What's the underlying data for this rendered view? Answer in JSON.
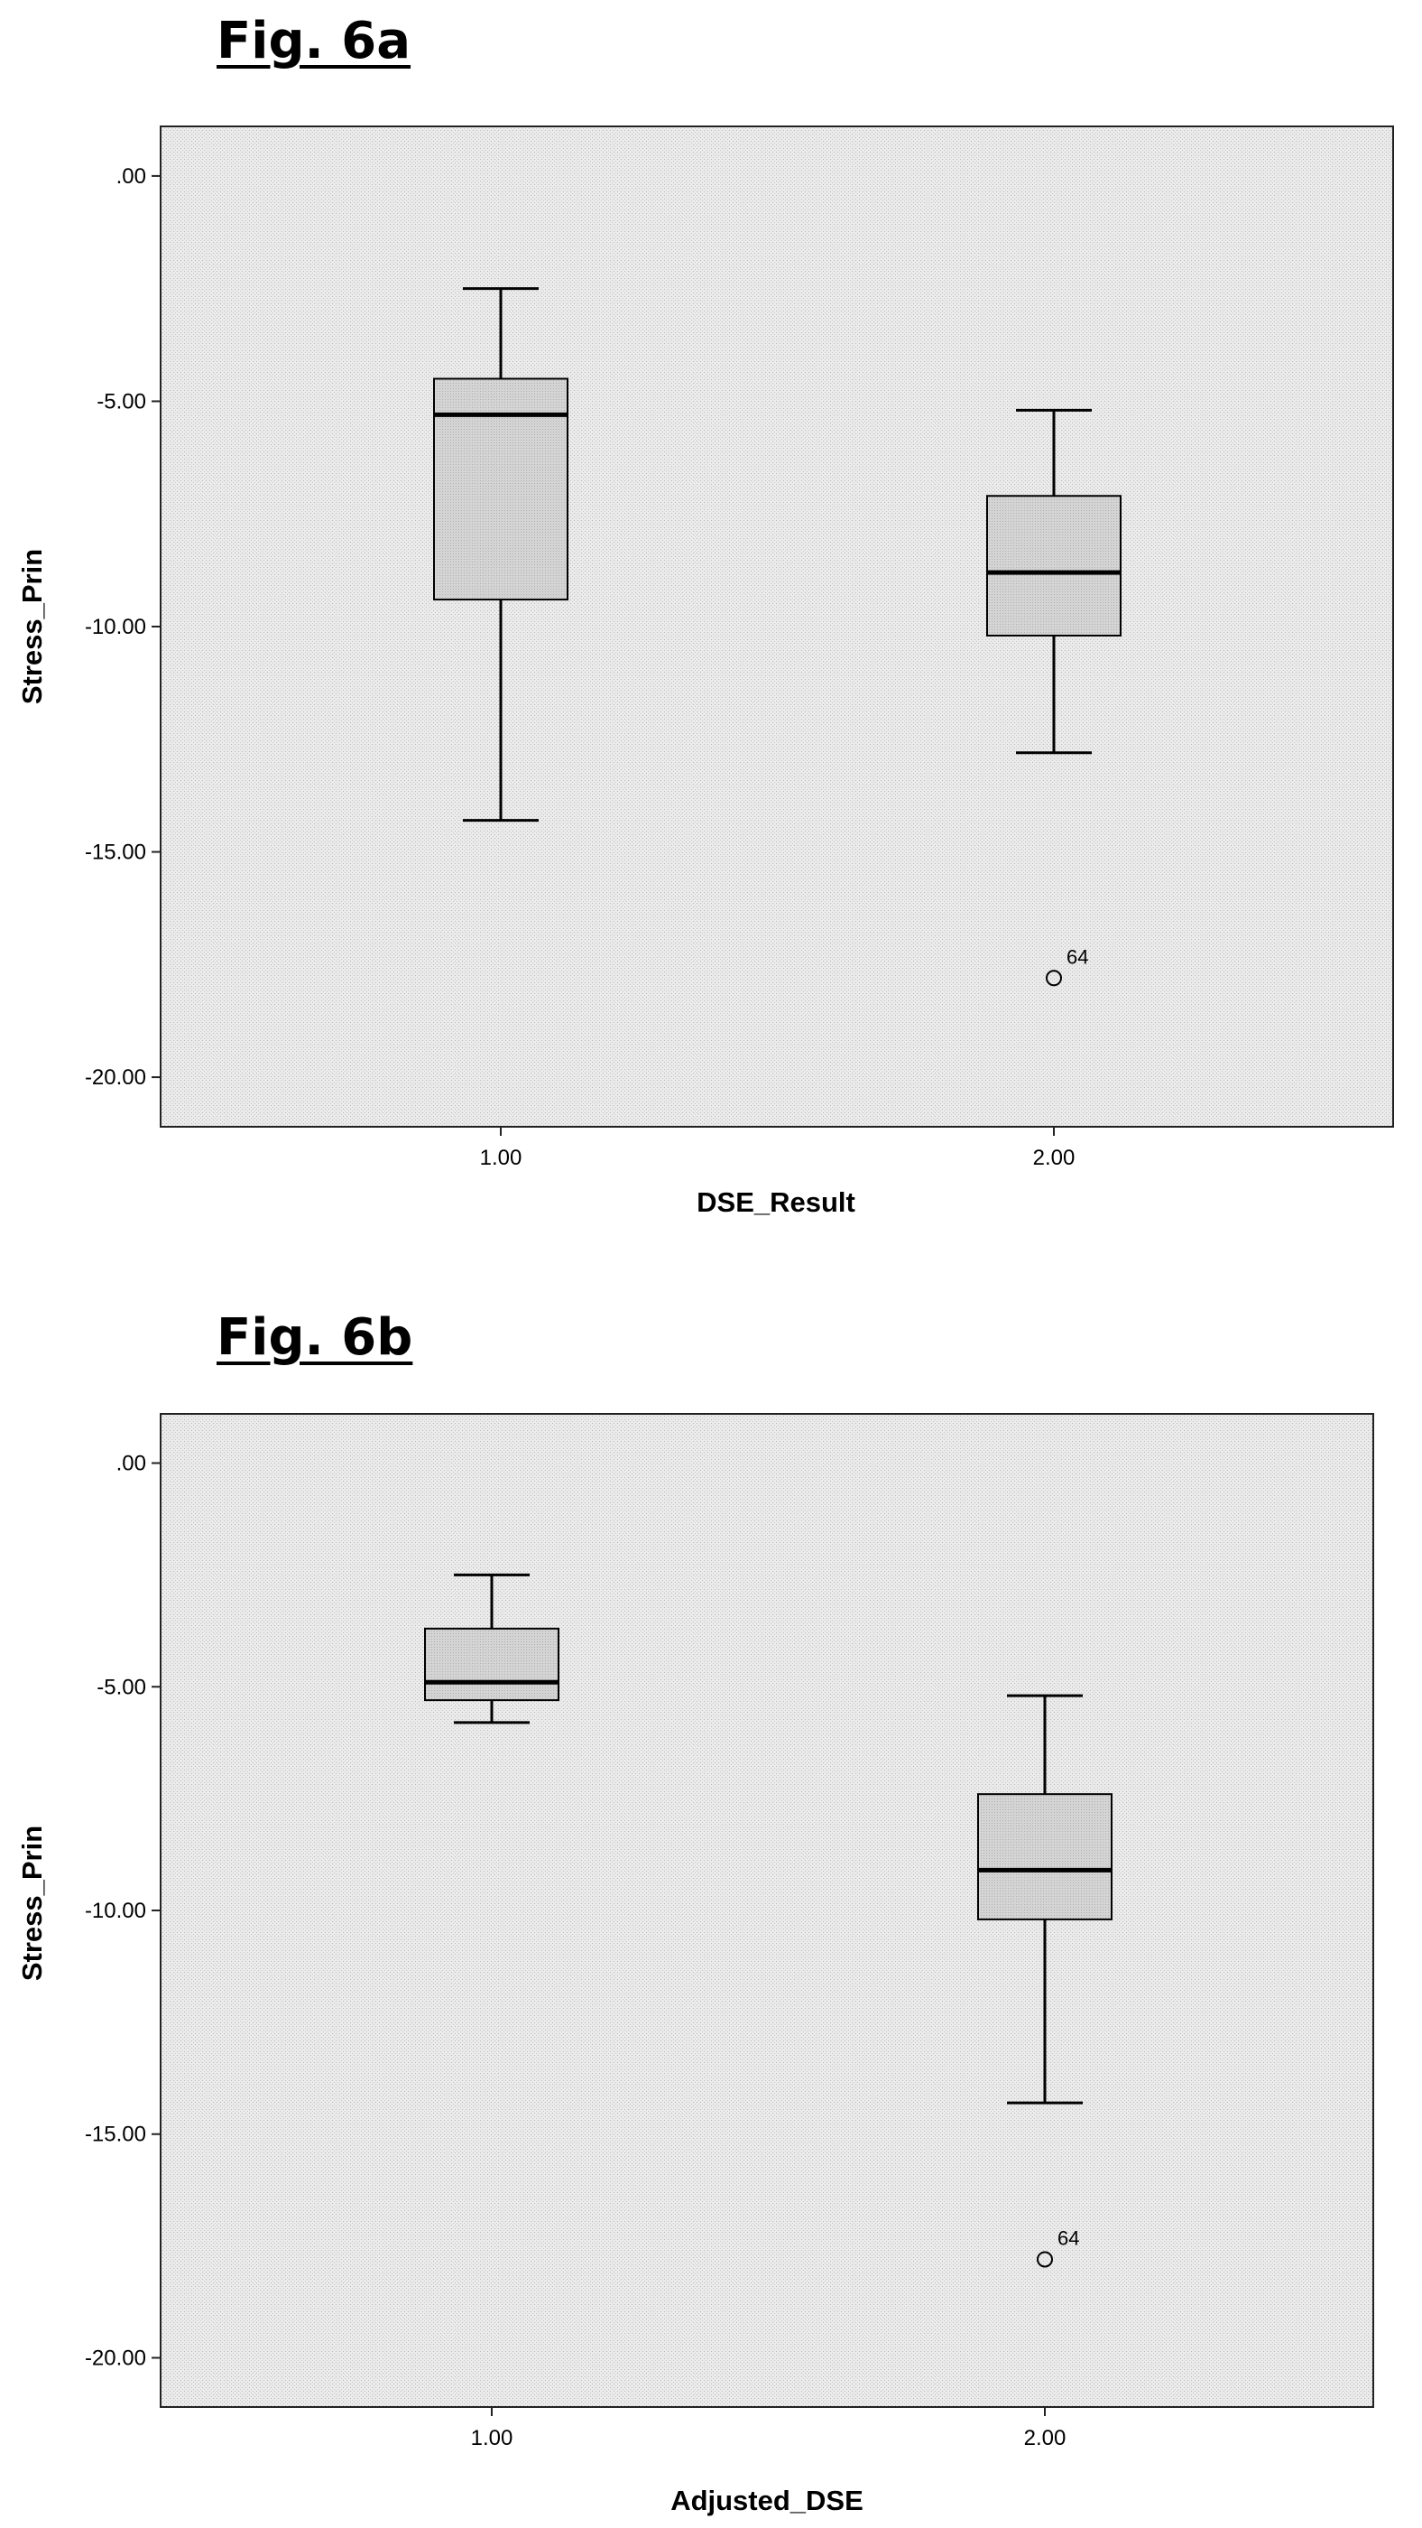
{
  "figures": [
    {
      "title": "Fig. 6a"
    },
    {
      "title": "Fig. 6b"
    }
  ],
  "chart_data": [
    {
      "type": "box",
      "title": "",
      "xlabel": "DSE_Result",
      "ylabel": "Stress_Prin",
      "categories": [
        "1.00",
        "2.00"
      ],
      "ylim": [
        -21.1,
        1.1
      ],
      "yticks": [
        ".00",
        "-5.00",
        "-10.00",
        "-15.00",
        "-20.00"
      ],
      "ytick_values": [
        0,
        -5,
        -10,
        -15,
        -20
      ],
      "grid": false,
      "boxes": [
        {
          "category": "1.00",
          "whisker_high": -2.5,
          "q3": -4.5,
          "median": -5.3,
          "q1": -9.4,
          "whisker_low": -14.3,
          "outliers": []
        },
        {
          "category": "2.00",
          "whisker_high": -5.2,
          "q3": -7.1,
          "median": -8.8,
          "q1": -10.2,
          "whisker_low": -12.8,
          "outliers": [
            {
              "value": -17.8,
              "label": "64"
            }
          ]
        }
      ]
    },
    {
      "type": "box",
      "title": "",
      "xlabel": "Adjusted_DSE",
      "ylabel": "Stress_Prin",
      "categories": [
        "1.00",
        "2.00"
      ],
      "ylim": [
        -21.1,
        1.1
      ],
      "yticks": [
        ".00",
        "-5.00",
        "-10.00",
        "-15.00",
        "-20.00"
      ],
      "ytick_values": [
        0,
        -5,
        -10,
        -15,
        -20
      ],
      "grid": false,
      "boxes": [
        {
          "category": "1.00",
          "whisker_high": -2.5,
          "q3": -3.7,
          "median": -4.9,
          "q1": -5.3,
          "whisker_low": -5.8,
          "outliers": []
        },
        {
          "category": "2.00",
          "whisker_high": -5.2,
          "q3": -7.4,
          "median": -9.1,
          "q1": -10.2,
          "whisker_low": -14.3,
          "outliers": [
            {
              "value": -17.8,
              "label": "64"
            }
          ]
        }
      ]
    }
  ]
}
